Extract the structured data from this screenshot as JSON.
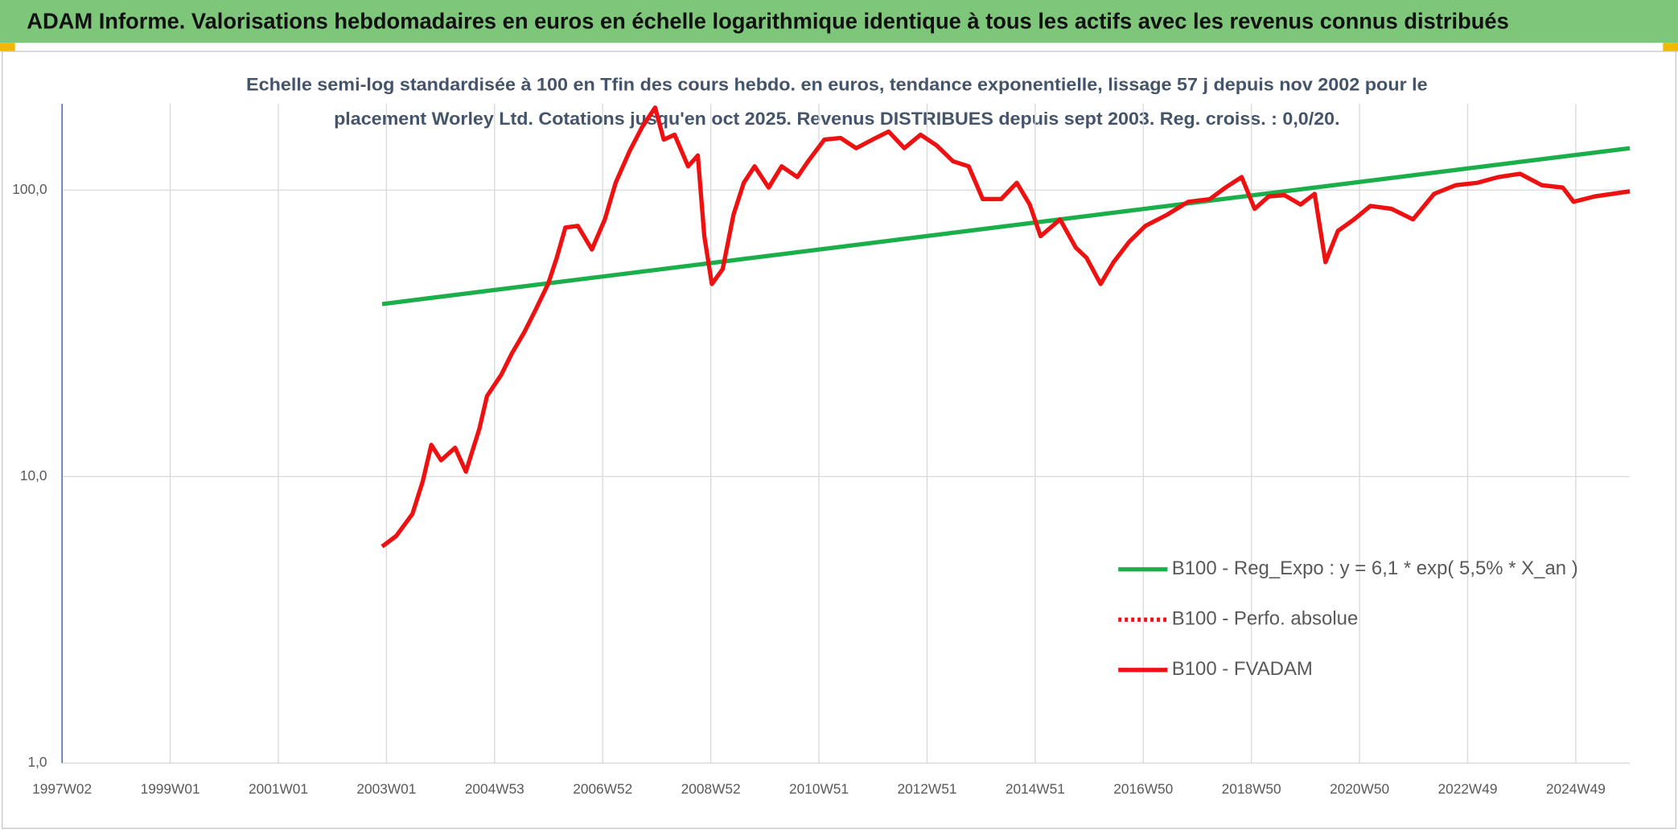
{
  "chart_data": {
    "type": "line",
    "header": "ADAM Informe. Valorisations hebdomadaires en euros en échelle logarithmique identique à tous les actifs avec les revenus connus distribués",
    "title": [
      "Echelle semi-log standardisée à 100 en Tfin des cours hebdo. en euros, tendance exponentielle, lissage 57 j depuis nov 2002 pour le",
      "placement Worley Ltd. Cotations jusqu'en oct 2025. Revenus DISTRIBUES depuis sept 2003. Reg. croiss. : 0,0/20."
    ],
    "xlim": [
      1997,
      2026
    ],
    "xticks": [
      {
        "value": 1997,
        "label": "1997W02"
      },
      {
        "value": 1999,
        "label": "1999W01"
      },
      {
        "value": 2001,
        "label": "2001W01"
      },
      {
        "value": 2003,
        "label": "2003W01"
      },
      {
        "value": 2005,
        "label": "2004W53"
      },
      {
        "value": 2007,
        "label": "2006W52"
      },
      {
        "value": 2009,
        "label": "2008W52"
      },
      {
        "value": 2011,
        "label": "2010W51"
      },
      {
        "value": 2013,
        "label": "2012W51"
      },
      {
        "value": 2015,
        "label": "2014W51"
      },
      {
        "value": 2017,
        "label": "2016W50"
      },
      {
        "value": 2019,
        "label": "2018W50"
      },
      {
        "value": 2021,
        "label": "2020W50"
      },
      {
        "value": 2023,
        "label": "2022W49"
      },
      {
        "value": 2025,
        "label": "2024W49"
      }
    ],
    "ylim": [
      1,
      200
    ],
    "yscale": "log",
    "yticks": [
      {
        "value": 1,
        "label": "1,0"
      },
      {
        "value": 10,
        "label": "10,0"
      },
      {
        "value": 100,
        "label": "100,0"
      }
    ],
    "grid": true,
    "legend": "lower right",
    "series": [
      {
        "name": "B100 - Reg_Expo : y = 6,1 * exp( 5,5% *  X_an )",
        "color": "#1aaf4b",
        "style": "solid",
        "x": [
          2002.92,
          2026.0
        ],
        "values": [
          40,
          140
        ]
      },
      {
        "name": "B100 - Perfo. absolue",
        "color": "#ee1111",
        "style": "dotted"
      },
      {
        "name": "B100 - FVADAM",
        "color": "#ee1111",
        "style": "solid",
        "x": [
          2002.92,
          2003.18,
          2003.48,
          2003.67,
          2003.83,
          2004.01,
          2004.27,
          2004.47,
          2004.72,
          2004.86,
          2005.12,
          2005.32,
          2005.55,
          2005.75,
          2005.99,
          2006.15,
          2006.31,
          2006.54,
          2006.8,
          2007.04,
          2007.24,
          2007.5,
          2007.73,
          2007.97,
          2008.13,
          2008.33,
          2008.58,
          2008.76,
          2008.88,
          2009.02,
          2009.22,
          2009.42,
          2009.61,
          2009.81,
          2010.07,
          2010.31,
          2010.6,
          2010.8,
          2011.1,
          2011.4,
          2011.69,
          2011.99,
          2012.29,
          2012.58,
          2012.88,
          2013.18,
          2013.48,
          2013.77,
          2014.03,
          2014.37,
          2014.66,
          2014.9,
          2015.1,
          2015.46,
          2015.75,
          2015.95,
          2016.21,
          2016.45,
          2016.74,
          2017.04,
          2017.44,
          2017.83,
          2018.23,
          2018.52,
          2018.82,
          2019.06,
          2019.32,
          2019.61,
          2019.91,
          2020.17,
          2020.37,
          2020.6,
          2020.9,
          2021.2,
          2021.59,
          2021.99,
          2022.38,
          2022.78,
          2023.18,
          2023.57,
          2023.97,
          2024.37,
          2024.76,
          2024.96,
          2025.35,
          2026.0
        ],
        "values": [
          5.7,
          6.2,
          7.4,
          9.6,
          12.9,
          11.4,
          12.6,
          10.4,
          14.7,
          19.1,
          22.6,
          26.9,
          31.9,
          37.9,
          47,
          58,
          74,
          75,
          62,
          79,
          106,
          137,
          166,
          194,
          150,
          156,
          121,
          132,
          69,
          47,
          53,
          82,
          106,
          121,
          102,
          121,
          111,
          126,
          150,
          152,
          140,
          150,
          160,
          140,
          156,
          143,
          126,
          121,
          93,
          93,
          106,
          89,
          69,
          79,
          63,
          58,
          47,
          56,
          66,
          75,
          82,
          91,
          93,
          102,
          111,
          86,
          95,
          96,
          89,
          97,
          56,
          72,
          79,
          88,
          86,
          79,
          97,
          104,
          106,
          111,
          114,
          104,
          102,
          91,
          95,
          99
        ]
      }
    ]
  }
}
